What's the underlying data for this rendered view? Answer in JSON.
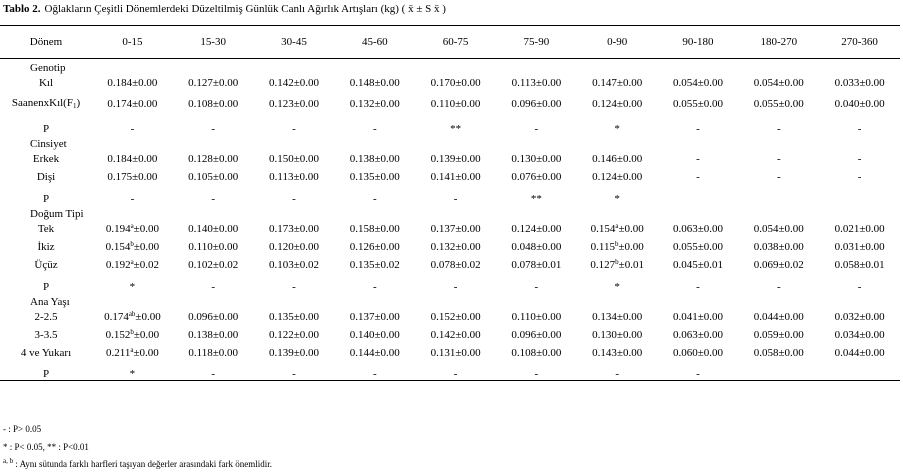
{
  "header": {
    "label": "Tablo 2.",
    "title": "Oğlakların Çeşitli Dönemlerdeki Düzeltilmiş Günlük Canlı Ağırlık Artışları (kg) ( x̄  ± S x̄ )"
  },
  "table": {
    "columns": [
      "Dönem",
      "0-15",
      "15-30",
      "30-45",
      "45-60",
      "60-75",
      "75-90",
      "0-90",
      "90-180",
      "180-270",
      "270-360"
    ],
    "groups": [
      {
        "label": "Genotip",
        "rows": [
          {
            "label": "Kıl",
            "cells": [
              "0.184±0.00",
              "0.127±0.00",
              "0.142±0.00",
              "0.148±0.00",
              "0.170±0.00",
              "0.113±0.00",
              "0.147±0.00",
              "0.054±0.00",
              "0.054±0.00",
              "0.033±0.00"
            ]
          },
          {
            "label": {
              "main": "SaanenxKıl(F",
              "sub": "1",
              "tail": ")"
            },
            "cells": [
              "0.174±0.00",
              "0.108±0.00",
              "0.123±0.00",
              "0.132±0.00",
              "0.110±0.00",
              "0.096±0.00",
              "0.124±0.00",
              "0.055±0.00",
              "0.055±0.00",
              "0.040±0.00"
            ]
          },
          {
            "label": "P",
            "cells": [
              "-",
              "-",
              "-",
              "-",
              "**",
              "-",
              "*",
              "-",
              "-",
              "-"
            ]
          }
        ]
      },
      {
        "label": "Cinsiyet",
        "rows": [
          {
            "label": "Erkek",
            "cells": [
              "0.184±0.00",
              "0.128±0.00",
              "0.150±0.00",
              "0.138±0.00",
              "0.139±0.00",
              "0.130±0.00",
              "0.146±0.00",
              "-",
              "-",
              "-"
            ]
          },
          {
            "label": "Dişi",
            "cells": [
              "0.175±0.00",
              "0.105±0.00",
              "0.113±0.00",
              "0.135±0.00",
              "0.141±0.00",
              "0.076±0.00",
              "0.124±0.00",
              "-",
              "-",
              "-"
            ]
          },
          {
            "label": "P",
            "cells": [
              "-",
              "-",
              "-",
              "-",
              "-",
              "**",
              "*",
              null,
              null,
              null
            ]
          }
        ]
      },
      {
        "label": "Doğum Tipi",
        "rows": [
          {
            "label": "Tek",
            "cells": [
              {
                "main": "0.194",
                "sup": "a",
                "tail": "±0.00"
              },
              "0.140±0.00",
              "0.173±0.00",
              "0.158±0.00",
              "0.137±0.00",
              "0.124±0.00",
              {
                "main": "0.154",
                "sup": "a",
                "tail": "±0.00"
              },
              "0.063±0.00",
              "0.054±0.00",
              "0.021±0.00"
            ]
          },
          {
            "label": "İkiz",
            "cells": [
              {
                "main": "0.154",
                "sup": "b",
                "tail": "±0.00"
              },
              "0.110±0.00",
              "0.120±0.00",
              "0.126±0.00",
              "0.132±0.00",
              "0.048±0.00",
              {
                "main": "0.115",
                "sup": "b",
                "tail": "±0.00"
              },
              "0.055±0.00",
              "0.038±0.00",
              "0.031±0.00"
            ]
          },
          {
            "label": "Üçüz",
            "cells": [
              {
                "main": "0.192",
                "sup": "a",
                "tail": "±0.02"
              },
              "0.102±0.02",
              "0.103±0.02",
              "0.135±0.02",
              "0.078±0.02",
              "0.078±0.01",
              {
                "main": "0.127",
                "sup": "b",
                "tail": "±0.01"
              },
              "0.045±0.01",
              "0.069±0.02",
              "0.058±0.01"
            ]
          },
          {
            "label": "P",
            "cells": [
              "*",
              "-",
              "-",
              "-",
              "-",
              "-",
              "*",
              "-",
              "-",
              "-"
            ]
          }
        ]
      },
      {
        "label": "Ana Yaşı",
        "rows": [
          {
            "label": "2-2.5",
            "cells": [
              {
                "main": "0.174",
                "sup": "ab",
                "tail": "±0.00"
              },
              "0.096±0.00",
              "0.135±0.00",
              "0.137±0.00",
              "0.152±0.00",
              "0.110±0.00",
              "0.134±0.00",
              "0.041±0.00",
              "0.044±0.00",
              "0.032±0.00"
            ]
          },
          {
            "label": "3-3.5",
            "cells": [
              {
                "main": "0.152",
                "sup": "b",
                "tail": "±0.00"
              },
              "0.138±0.00",
              "0.122±0.00",
              "0.140±0.00",
              "0.142±0.00",
              "0.096±0.00",
              "0.130±0.00",
              "0.063±0.00",
              "0.059±0.00",
              "0.034±0.00"
            ]
          },
          {
            "label": "4 ve Yukarı",
            "cells": [
              {
                "main": "0.211",
                "sup": "a",
                "tail": "±0.00"
              },
              "0.118±0.00",
              "0.139±0.00",
              "0.144±0.00",
              "0.131±0.00",
              "0.108±0.00",
              "0.143±0.00",
              "0.060±0.00",
              "0.058±0.00",
              "0.044±0.00"
            ]
          },
          {
            "label": "P",
            "cells": [
              "*",
              "-",
              "-",
              "-",
              "-",
              "-",
              "-",
              "-",
              null,
              null
            ]
          }
        ]
      }
    ]
  },
  "footnotes": [
    "- : P> 0.05",
    "* : P< 0.05, ** : P<0.01",
    {
      "sup": "a, b",
      "tail": " : Aynı sütunda farklı harfleri taşıyan değerler arasındaki  fark önemlidir."
    }
  ]
}
